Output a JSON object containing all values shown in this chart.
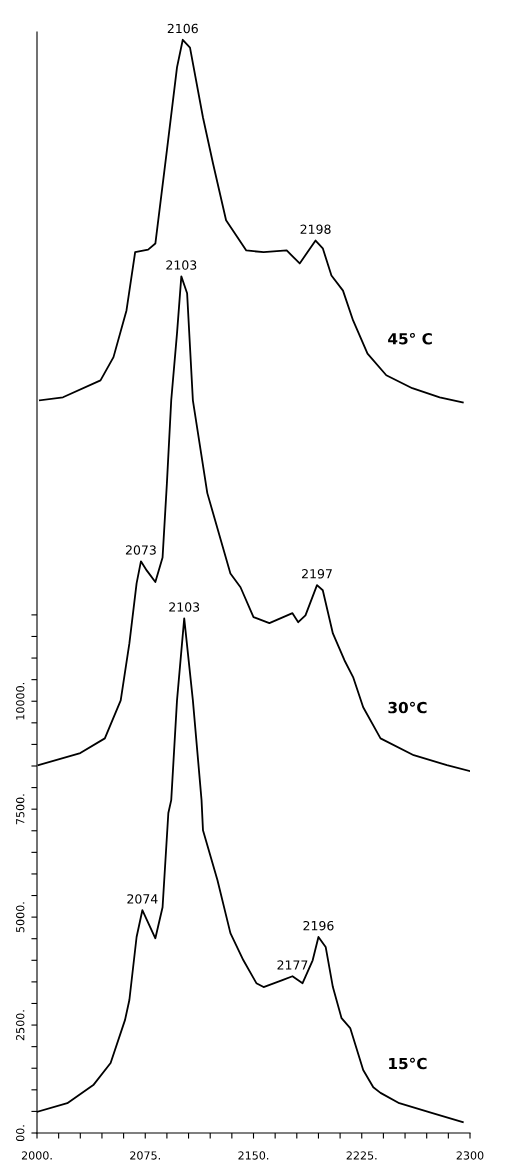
{
  "chart_data": {
    "type": "line",
    "marker": "none",
    "line_style": "solid",
    "grid": false,
    "xlim": [
      2000,
      2300
    ],
    "ylim": [
      0,
      25500
    ],
    "xticks": [
      {
        "value": 2000,
        "label": "2000."
      },
      {
        "value": 2015,
        "label": null
      },
      {
        "value": 2030,
        "label": null
      },
      {
        "value": 2045,
        "label": null
      },
      {
        "value": 2060,
        "label": null
      },
      {
        "value": 2075,
        "label": "2075."
      },
      {
        "value": 2090,
        "label": null
      },
      {
        "value": 2105,
        "label": null
      },
      {
        "value": 2120,
        "label": null
      },
      {
        "value": 2135,
        "label": null
      },
      {
        "value": 2150,
        "label": "2150."
      },
      {
        "value": 2165,
        "label": null
      },
      {
        "value": 2180,
        "label": null
      },
      {
        "value": 2195,
        "label": null
      },
      {
        "value": 2210,
        "label": null
      },
      {
        "value": 2225,
        "label": "2225."
      },
      {
        "value": 2240,
        "label": null
      },
      {
        "value": 2255,
        "label": null
      },
      {
        "value": 2270,
        "label": null
      },
      {
        "value": 2285,
        "label": null
      },
      2300
    ],
    "yticks": [
      {
        "value": 0,
        "label": "00."
      },
      {
        "value": 500,
        "label": null
      },
      {
        "value": 1000,
        "label": null
      },
      {
        "value": 1500,
        "label": null
      },
      {
        "value": 2000,
        "label": null
      },
      {
        "value": 2500,
        "label": "2500."
      },
      {
        "value": 3000,
        "label": null
      },
      {
        "value": 3500,
        "label": null
      },
      {
        "value": 4000,
        "label": null
      },
      {
        "value": 4500,
        "label": null
      },
      {
        "value": 5000,
        "label": "5000."
      },
      {
        "value": 5500,
        "label": null
      },
      {
        "value": 6000,
        "label": null
      },
      {
        "value": 6500,
        "label": null
      },
      {
        "value": 7000,
        "label": null
      },
      {
        "value": 7500,
        "label": "7500."
      },
      {
        "value": 8000,
        "label": null
      },
      {
        "value": 8500,
        "label": null
      },
      {
        "value": 9000,
        "label": null
      },
      {
        "value": 9500,
        "label": null
      },
      {
        "value": 10000,
        "label": "10000."
      },
      {
        "value": 10500,
        "label": null
      },
      {
        "value": 11000,
        "label": null
      },
      {
        "value": 11500,
        "label": null
      },
      {
        "value": 12000,
        "label": null
      }
    ],
    "series": [
      {
        "name": "45° C",
        "color": "#000000",
        "x": [
          2002,
          2018,
          2044,
          2053,
          2062,
          2068,
          2077,
          2082,
          2090,
          2097,
          2101,
          2106,
          2115,
          2122,
          2131,
          2145,
          2157,
          2173,
          2182,
          2193,
          2198,
          2204,
          2212,
          2219,
          2229,
          2242,
          2260,
          2279,
          2295
        ],
        "values": [
          16970,
          17040,
          17430,
          17970,
          19050,
          20400,
          20460,
          20600,
          22760,
          24680,
          25320,
          25140,
          23520,
          22450,
          21140,
          20440,
          20400,
          20440,
          20140,
          20670,
          20490,
          19860,
          19510,
          18820,
          18050,
          17550,
          17250,
          17040,
          16920
        ]
      },
      {
        "name": "30°C",
        "color": "#000000",
        "x": [
          2001,
          2030,
          2047,
          2058,
          2064,
          2069,
          2072,
          2076,
          2082,
          2087,
          2090,
          2093,
          2097,
          2100,
          2104,
          2108,
          2118,
          2134,
          2141,
          2150,
          2161,
          2177,
          2181,
          2186,
          2194,
          2198,
          2205,
          2213,
          2219,
          2226,
          2238,
          2261,
          2284,
          2300
        ],
        "values": [
          8520,
          8800,
          9140,
          10020,
          11340,
          12730,
          13240,
          13030,
          12760,
          13330,
          15050,
          16970,
          18520,
          19840,
          19450,
          16970,
          14820,
          12960,
          12640,
          11950,
          11810,
          12040,
          11830,
          11990,
          12690,
          12570,
          11570,
          10950,
          10560,
          9860,
          9140,
          8750,
          8520,
          8380
        ]
      },
      {
        "name": "15°C",
        "color": "#000000",
        "x": [
          2000,
          2021,
          2039,
          2051,
          2061,
          2064,
          2069,
          2073,
          2082,
          2087,
          2091,
          2093,
          2097,
          2102,
          2108,
          2114,
          2115,
          2125,
          2134,
          2143,
          2152,
          2157,
          2170,
          2177,
          2184,
          2191,
          2195,
          2200,
          2205,
          2211,
          2217,
          2226,
          2233,
          2238,
          2251,
          2274,
          2295
        ],
        "values": [
          490,
          690,
          1110,
          1620,
          2620,
          3080,
          4540,
          5160,
          4510,
          5230,
          7410,
          7710,
          10020,
          11920,
          10020,
          7710,
          7010,
          5860,
          4630,
          4000,
          3470,
          3380,
          3540,
          3630,
          3470,
          4000,
          4540,
          4310,
          3380,
          2660,
          2430,
          1460,
          1060,
          930,
          690,
          460,
          250
        ]
      }
    ],
    "annotations": [
      {
        "text": "2106",
        "x": 2101,
        "y": 25320
      },
      {
        "text": "2198",
        "x": 2193,
        "y": 20670
      },
      {
        "text": "2103",
        "x": 2100,
        "y": 19840
      },
      {
        "text": "2073",
        "x": 2072,
        "y": 13240
      },
      {
        "text": "2197",
        "x": 2194,
        "y": 12690
      },
      {
        "text": "2103",
        "x": 2102,
        "y": 11920
      },
      {
        "text": "2074",
        "x": 2073,
        "y": 5160
      },
      {
        "text": "2177",
        "x": 2177,
        "y": 3630
      },
      {
        "text": "2196",
        "x": 2195,
        "y": 4540
      }
    ]
  }
}
